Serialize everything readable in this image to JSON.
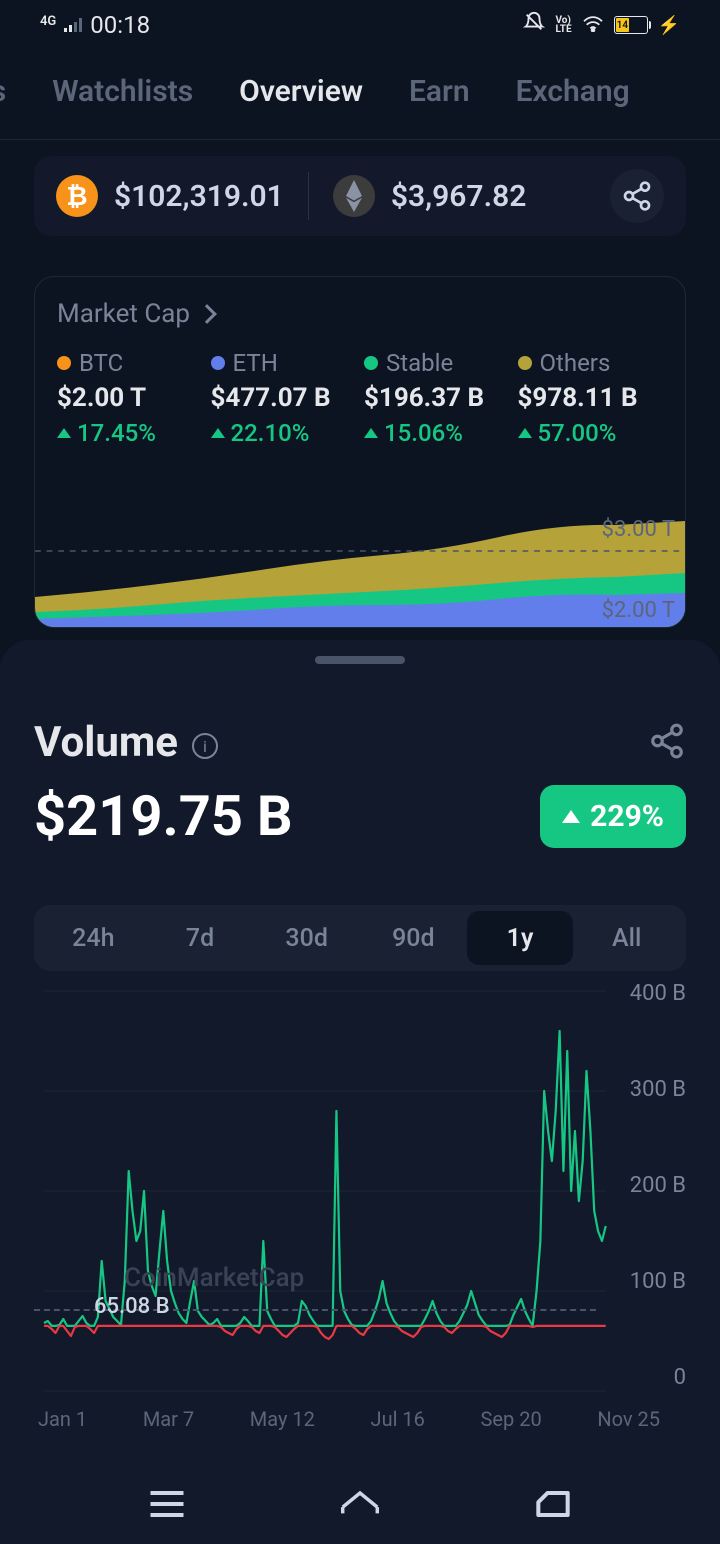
{
  "status": {
    "signal": "4G",
    "time": "00:18",
    "battery_pct": 14
  },
  "tabs": {
    "items": [
      "ns",
      "Watchlists",
      "Overview",
      "Earn",
      "Exchang"
    ],
    "activeIndex": 2
  },
  "ticker": {
    "btc": "$102,319.01",
    "eth": "$3,967.82"
  },
  "market_cap": {
    "title": "Market Cap",
    "items": [
      {
        "label": "BTC",
        "color": "#f7931a",
        "value": "$2.00 T",
        "change": "17.45%"
      },
      {
        "label": "ETH",
        "color": "#627eea",
        "value": "$477.07 B",
        "change": "22.10%"
      },
      {
        "label": "Stable",
        "color": "#16c784",
        "value": "$196.37 B",
        "change": "15.06%"
      },
      {
        "label": "Others",
        "color": "#b5a33a",
        "value": "$978.11 B",
        "change": "57.00%"
      }
    ],
    "axis_top": "$3.00 T",
    "axis_bottom": "$2.00 T",
    "chart": {
      "background": "#13192a",
      "series_colors": {
        "others": "#b5a33a",
        "stable": "#16c784",
        "eth": "#627eea",
        "btc": "#1e2835"
      }
    }
  },
  "volume": {
    "title": "Volume",
    "value": "$219.75 B",
    "change": "229%",
    "change_color": "#16c784",
    "ranges": [
      "24h",
      "7d",
      "30d",
      "90d",
      "1y",
      "All"
    ],
    "activeRangeIndex": 4,
    "y_labels": [
      "400 B",
      "300 B",
      "200 B",
      "100 B",
      "0"
    ],
    "x_labels": [
      "Jan 1",
      "Mar 7",
      "May 12",
      "Jul 16",
      "Sep 20",
      "Nov 25"
    ],
    "baseline_label": "65.08 B",
    "watermark": "CoinMarketCap",
    "chart": {
      "line_up_color": "#16c784",
      "line_down_color": "#ea3943",
      "grid_color": "#1e2835",
      "ylim": [
        0,
        400
      ],
      "baseline": 65.08,
      "data": [
        68,
        70,
        62,
        58,
        66,
        72,
        60,
        55,
        64,
        70,
        75,
        68,
        62,
        58,
        74,
        130,
        90,
        82,
        74,
        70,
        66,
        110,
        220,
        180,
        150,
        160,
        200,
        120,
        105,
        95,
        140,
        180,
        130,
        100,
        88,
        78,
        72,
        68,
        90,
        110,
        80,
        74,
        70,
        66,
        68,
        72,
        64,
        60,
        58,
        56,
        62,
        68,
        74,
        70,
        64,
        60,
        58,
        150,
        80,
        72,
        64,
        60,
        56,
        54,
        58,
        62,
        68,
        90,
        85,
        76,
        70,
        64,
        58,
        54,
        52,
        56,
        280,
        100,
        80,
        72,
        66,
        62,
        58,
        56,
        62,
        70,
        80,
        92,
        110,
        88,
        78,
        70,
        64,
        60,
        58,
        56,
        54,
        58,
        64,
        72,
        80,
        90,
        78,
        70,
        64,
        60,
        58,
        62,
        70,
        78,
        86,
        100,
        88,
        76,
        70,
        64,
        60,
        58,
        56,
        54,
        58,
        66,
        76,
        84,
        92,
        80,
        72,
        64,
        100,
        150,
        300,
        260,
        230,
        280,
        360,
        220,
        340,
        200,
        260,
        190,
        230,
        320,
        260,
        180,
        160,
        150,
        165
      ]
    }
  }
}
